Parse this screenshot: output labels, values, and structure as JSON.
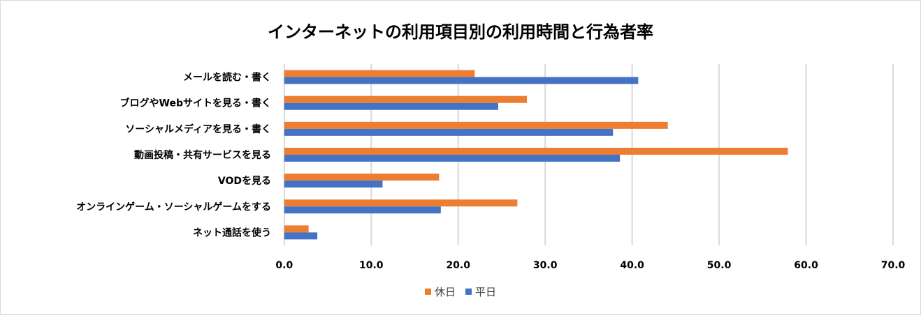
{
  "chart_data": {
    "type": "bar",
    "orientation": "horizontal",
    "title": "インターネットの利用項目別の利用時間と行為者率",
    "categories": [
      "メールを読む・書く",
      "ブログやWebサイトを見る・書く",
      "ソーシャルメディアを見る・書く",
      "動画投稿・共有サービスを見る",
      "VODを見る",
      "オンラインゲーム・ソーシャルゲームをする",
      "ネット通話を使う"
    ],
    "series": [
      {
        "name": "休日",
        "color": "#ED7D31",
        "values": [
          21.9,
          27.9,
          44.1,
          57.9,
          17.8,
          26.8,
          2.8
        ]
      },
      {
        "name": "平日",
        "color": "#4472C4",
        "values": [
          40.7,
          24.6,
          37.8,
          38.6,
          11.3,
          18.0,
          3.8
        ]
      }
    ],
    "xlim": [
      0,
      70
    ],
    "xticks": [
      "0.0",
      "10.0",
      "20.0",
      "30.0",
      "40.0",
      "50.0",
      "60.0",
      "70.0"
    ],
    "grid": true,
    "gridline_color": "#d9d9d9",
    "legend_position": "bottom"
  }
}
